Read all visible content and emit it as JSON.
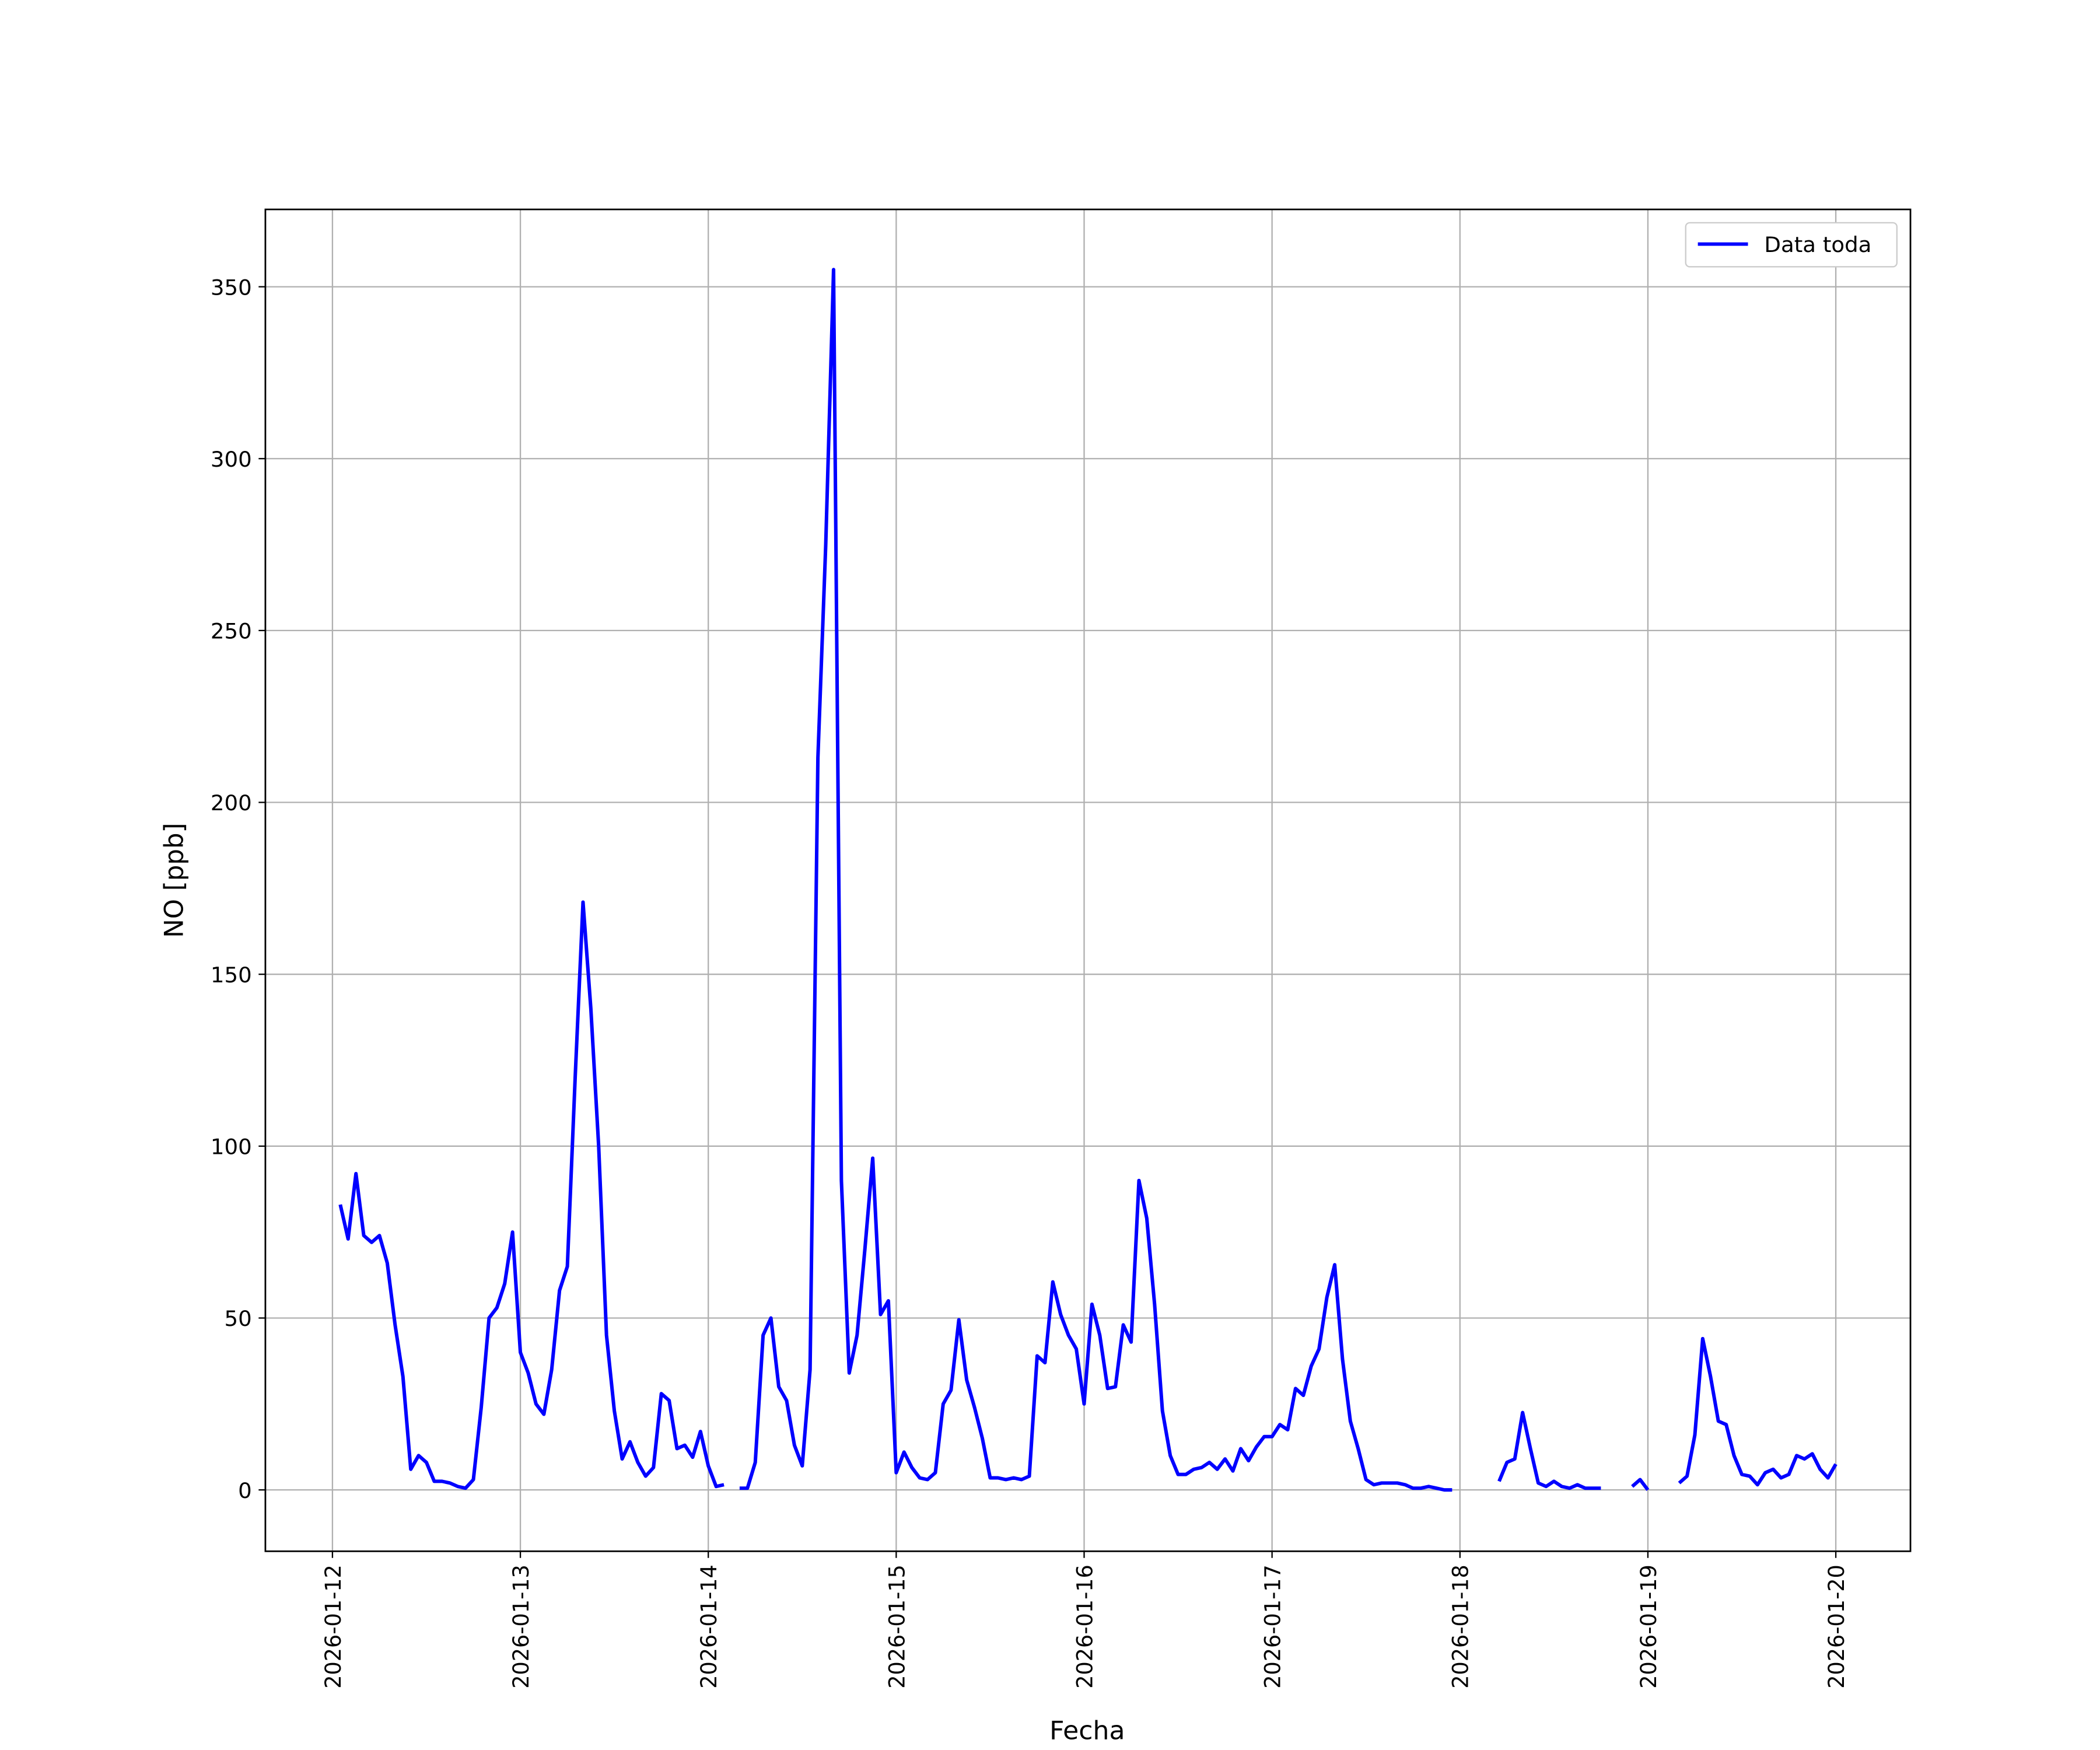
{
  "chart_data": {
    "type": "line",
    "xlabel": "Fecha",
    "ylabel": "NO [ppb]",
    "x": [
      "2026-01-12 01:00",
      "2026-01-12 02:00",
      "2026-01-12 03:00",
      "2026-01-12 04:00",
      "2026-01-12 05:00",
      "2026-01-12 06:00",
      "2026-01-12 07:00",
      "2026-01-12 08:00",
      "2026-01-12 09:00",
      "2026-01-12 10:00",
      "2026-01-12 11:00",
      "2026-01-12 12:00",
      "2026-01-12 13:00",
      "2026-01-12 14:00",
      "2026-01-12 15:00",
      "2026-01-12 16:00",
      "2026-01-12 17:00",
      "2026-01-12 18:00",
      "2026-01-12 19:00",
      "2026-01-12 20:00",
      "2026-01-12 21:00",
      "2026-01-12 22:00",
      "2026-01-12 23:00",
      "2026-01-13 00:00",
      "2026-01-13 01:00",
      "2026-01-13 02:00",
      "2026-01-13 03:00",
      "2026-01-13 04:00",
      "2026-01-13 05:00",
      "2026-01-13 06:00",
      "2026-01-13 07:00",
      "2026-01-13 08:00",
      "2026-01-13 09:00",
      "2026-01-13 10:00",
      "2026-01-13 11:00",
      "2026-01-13 12:00",
      "2026-01-13 13:00",
      "2026-01-13 14:00",
      "2026-01-13 15:00",
      "2026-01-13 16:00",
      "2026-01-13 17:00",
      "2026-01-13 18:00",
      "2026-01-13 19:00",
      "2026-01-13 20:00",
      "2026-01-13 21:00",
      "2026-01-13 22:00",
      "2026-01-13 23:00",
      "2026-01-14 00:00",
      "2026-01-14 01:00",
      "2026-01-14 02:00",
      "2026-01-14 03:00",
      "2026-01-14 04:00",
      "2026-01-14 05:00",
      "2026-01-14 06:00",
      "2026-01-14 07:00",
      "2026-01-14 08:00",
      "2026-01-14 09:00",
      "2026-01-14 10:00",
      "2026-01-14 11:00",
      "2026-01-14 12:00",
      "2026-01-14 13:00",
      "2026-01-14 14:00",
      "2026-01-14 15:00",
      "2026-01-14 16:00",
      "2026-01-14 17:00",
      "2026-01-14 18:00",
      "2026-01-14 19:00",
      "2026-01-14 20:00",
      "2026-01-14 21:00",
      "2026-01-14 22:00",
      "2026-01-14 23:00",
      "2026-01-15 00:00",
      "2026-01-15 01:00",
      "2026-01-15 02:00",
      "2026-01-15 03:00",
      "2026-01-15 04:00",
      "2026-01-15 05:00",
      "2026-01-15 06:00",
      "2026-01-15 07:00",
      "2026-01-15 08:00",
      "2026-01-15 09:00",
      "2026-01-15 10:00",
      "2026-01-15 11:00",
      "2026-01-15 12:00",
      "2026-01-15 13:00",
      "2026-01-15 14:00",
      "2026-01-15 15:00",
      "2026-01-15 16:00",
      "2026-01-15 17:00",
      "2026-01-15 18:00",
      "2026-01-15 19:00",
      "2026-01-15 20:00",
      "2026-01-15 21:00",
      "2026-01-15 22:00",
      "2026-01-15 23:00",
      "2026-01-16 00:00",
      "2026-01-16 01:00",
      "2026-01-16 02:00",
      "2026-01-16 03:00",
      "2026-01-16 04:00",
      "2026-01-16 05:00",
      "2026-01-16 06:00",
      "2026-01-16 07:00",
      "2026-01-16 08:00",
      "2026-01-16 09:00",
      "2026-01-16 10:00",
      "2026-01-16 11:00",
      "2026-01-16 12:00",
      "2026-01-16 13:00",
      "2026-01-16 14:00",
      "2026-01-16 15:00",
      "2026-01-16 16:00",
      "2026-01-16 17:00",
      "2026-01-16 18:00",
      "2026-01-16 19:00",
      "2026-01-16 20:00",
      "2026-01-16 21:00",
      "2026-01-16 22:00",
      "2026-01-16 23:00",
      "2026-01-17 00:00",
      "2026-01-17 01:00",
      "2026-01-17 02:00",
      "2026-01-17 03:00",
      "2026-01-17 04:00",
      "2026-01-17 05:00",
      "2026-01-17 06:00",
      "2026-01-17 07:00",
      "2026-01-17 08:00",
      "2026-01-17 09:00",
      "2026-01-17 10:00",
      "2026-01-17 11:00",
      "2026-01-17 12:00",
      "2026-01-17 13:00",
      "2026-01-17 14:00",
      "2026-01-17 15:00",
      "2026-01-17 16:00",
      "2026-01-17 17:00",
      "2026-01-17 18:00",
      "2026-01-17 19:00",
      "2026-01-17 20:00",
      "2026-01-17 21:00",
      "2026-01-17 22:00",
      "2026-01-17 23:00",
      "2026-01-18 00:00",
      "2026-01-18 01:00",
      "2026-01-18 02:00",
      "2026-01-18 03:00",
      "2026-01-18 04:00",
      "2026-01-18 05:00",
      "2026-01-18 06:00",
      "2026-01-18 07:00",
      "2026-01-18 08:00",
      "2026-01-18 09:00",
      "2026-01-18 10:00",
      "2026-01-18 11:00",
      "2026-01-18 12:00",
      "2026-01-18 13:00",
      "2026-01-18 14:00",
      "2026-01-18 15:00",
      "2026-01-18 16:00",
      "2026-01-18 17:00",
      "2026-01-18 18:00",
      "2026-01-18 19:00",
      "2026-01-18 20:00",
      "2026-01-18 21:00",
      "2026-01-18 22:00",
      "2026-01-18 23:00",
      "2026-01-19 00:00",
      "2026-01-19 01:00",
      "2026-01-19 02:00",
      "2026-01-19 03:00",
      "2026-01-19 04:00",
      "2026-01-19 05:00",
      "2026-01-19 06:00",
      "2026-01-19 07:00",
      "2026-01-19 08:00",
      "2026-01-19 09:00",
      "2026-01-19 10:00",
      "2026-01-19 11:00",
      "2026-01-19 12:00",
      "2026-01-19 13:00",
      "2026-01-19 14:00",
      "2026-01-19 15:00",
      "2026-01-19 16:00",
      "2026-01-19 17:00",
      "2026-01-19 18:00",
      "2026-01-19 19:00",
      "2026-01-19 20:00",
      "2026-01-19 21:00",
      "2026-01-19 22:00",
      "2026-01-19 23:00",
      "2026-01-20 00:00"
    ],
    "series": [
      {
        "name": "Data toda",
        "color": "#0000ff",
        "values": [
          83,
          73,
          92,
          74,
          72,
          74,
          66,
          48,
          33,
          6,
          10,
          8,
          2.5,
          2.5,
          2,
          1,
          0.5,
          3,
          24,
          50,
          53,
          60,
          75,
          40,
          34,
          25,
          22,
          35,
          58,
          65,
          120,
          171,
          140,
          100,
          45,
          23,
          9,
          14,
          8,
          4,
          6.5,
          28,
          26,
          12,
          13,
          9.5,
          17,
          7,
          1,
          1.5,
          null,
          0.5,
          0.5,
          8,
          45,
          50,
          30,
          26,
          13,
          7,
          35,
          213,
          275,
          355,
          90,
          34,
          45,
          70,
          96.5,
          51,
          55,
          5,
          11,
          6.5,
          3.5,
          3,
          5,
          25,
          29,
          49.5,
          32,
          24,
          15,
          3.5,
          3.5,
          3,
          3.5,
          3,
          4,
          39,
          37,
          60.5,
          51,
          45,
          41,
          25,
          54,
          45,
          29.5,
          30,
          48,
          43,
          90,
          79,
          54,
          23,
          10,
          4.5,
          4.5,
          6,
          6.5,
          8,
          6,
          9,
          5.5,
          12,
          8.5,
          12.5,
          15.5,
          15.5,
          19,
          17.5,
          29.5,
          27.5,
          36,
          41,
          56,
          65.5,
          38,
          20,
          12,
          3,
          1.5,
          2,
          2,
          2,
          1.5,
          0.5,
          0.5,
          1,
          0.5,
          0,
          0,
          null,
          null,
          null,
          null,
          null,
          2.5,
          8,
          9,
          22.5,
          12,
          2,
          1,
          2.5,
          1,
          0.5,
          1.5,
          0.5,
          0.5,
          0.5,
          null,
          null,
          null,
          1,
          3,
          0,
          null,
          null,
          null,
          2,
          4,
          16,
          44,
          33,
          20,
          19,
          10,
          4.5,
          4,
          1.5,
          5,
          6,
          3.5,
          4.5,
          10,
          9,
          10.5,
          6,
          3.5,
          7.5
        ]
      }
    ],
    "xlim": [
      "2026-01-11 15:26",
      "2026-01-20 09:32"
    ],
    "xticks": [
      "2026-01-12",
      "2026-01-13",
      "2026-01-14",
      "2026-01-15",
      "2026-01-16",
      "2026-01-17",
      "2026-01-18",
      "2026-01-19",
      "2026-01-20"
    ],
    "ylim": [
      -17.85,
      372.5
    ],
    "yticks": [
      0,
      50,
      100,
      150,
      200,
      250,
      300,
      350
    ],
    "grid": true,
    "legend": "upper right"
  }
}
